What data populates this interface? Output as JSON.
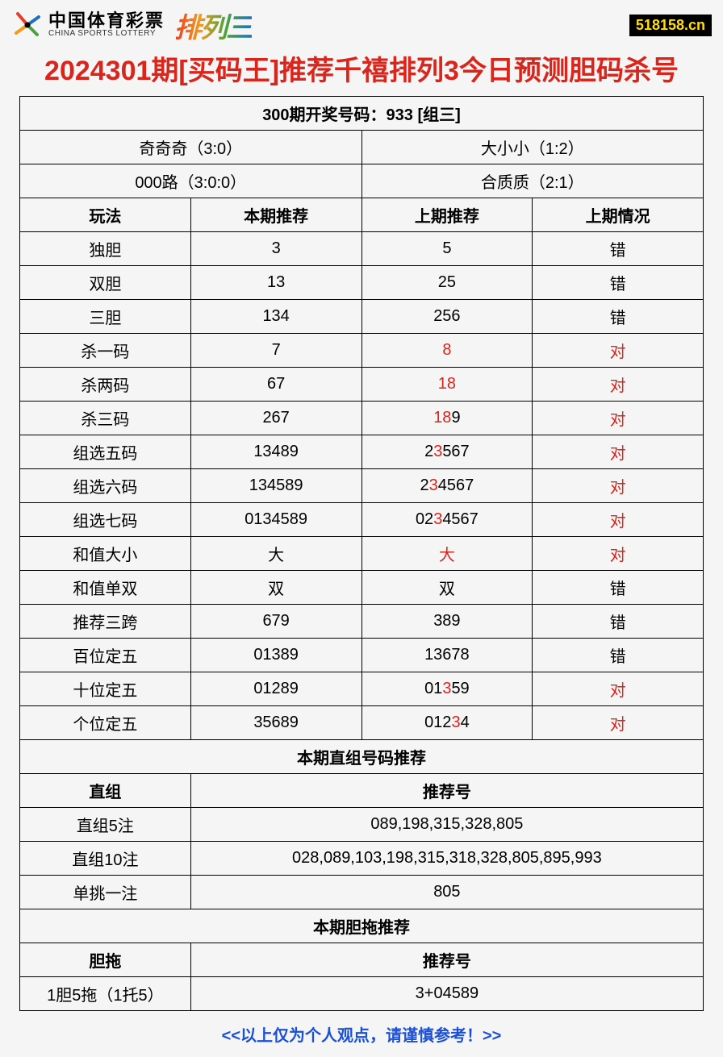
{
  "header": {
    "lottery_cn": "中国体育彩票",
    "lottery_en": "CHINA SPORTS LOTTERY",
    "pailie": "排列三",
    "site_badge": "518158.cn"
  },
  "title": "2024301期[买码王]推荐千禧排列3今日预测胆码杀号",
  "colors": {
    "title": "#d9251c",
    "highlight": "#d9251c",
    "footer": "#1b4fd6",
    "border": "#000000",
    "badge_bg": "#000000",
    "badge_fg": "#ffde00"
  },
  "fonts": {
    "title_size": 34,
    "cell_size": 20
  },
  "result_header": "300期开奖号码：933 [组三]",
  "info_pairs": [
    {
      "left": "奇奇奇（3:0）",
      "right": "大小小（1:2）"
    },
    {
      "left": "000路（3:0:0）",
      "right": "合质质（2:1）"
    }
  ],
  "column_headers": [
    "玩法",
    "本期推荐",
    "上期推荐",
    "上期情况"
  ],
  "rows": [
    {
      "name": "独胆",
      "current": [
        {
          "t": "3"
        }
      ],
      "prev": [
        {
          "t": "5"
        }
      ],
      "status": [
        {
          "t": "错"
        }
      ]
    },
    {
      "name": "双胆",
      "current": [
        {
          "t": "13"
        }
      ],
      "prev": [
        {
          "t": "25"
        }
      ],
      "status": [
        {
          "t": "错"
        }
      ]
    },
    {
      "name": "三胆",
      "current": [
        {
          "t": "134"
        }
      ],
      "prev": [
        {
          "t": "256"
        }
      ],
      "status": [
        {
          "t": "错"
        }
      ]
    },
    {
      "name": "杀一码",
      "current": [
        {
          "t": "7"
        }
      ],
      "prev": [
        {
          "t": "8",
          "c": "red"
        }
      ],
      "status": [
        {
          "t": "对",
          "c": "red"
        }
      ]
    },
    {
      "name": "杀两码",
      "current": [
        {
          "t": "67"
        }
      ],
      "prev": [
        {
          "t": "18",
          "c": "red"
        }
      ],
      "status": [
        {
          "t": "对",
          "c": "red"
        }
      ]
    },
    {
      "name": "杀三码",
      "current": [
        {
          "t": "267"
        }
      ],
      "prev": [
        {
          "t": "18",
          "c": "red"
        },
        {
          "t": "9"
        }
      ],
      "status": [
        {
          "t": "对",
          "c": "red"
        }
      ]
    },
    {
      "name": "组选五码",
      "current": [
        {
          "t": "13489"
        }
      ],
      "prev": [
        {
          "t": "2"
        },
        {
          "t": "3",
          "c": "red"
        },
        {
          "t": "567"
        }
      ],
      "status": [
        {
          "t": "对",
          "c": "red"
        }
      ]
    },
    {
      "name": "组选六码",
      "current": [
        {
          "t": "134589"
        }
      ],
      "prev": [
        {
          "t": "2"
        },
        {
          "t": "3",
          "c": "red"
        },
        {
          "t": "4567"
        }
      ],
      "status": [
        {
          "t": "对",
          "c": "red"
        }
      ]
    },
    {
      "name": "组选七码",
      "current": [
        {
          "t": "0134589"
        }
      ],
      "prev": [
        {
          "t": "02"
        },
        {
          "t": "3",
          "c": "red"
        },
        {
          "t": "4567"
        }
      ],
      "status": [
        {
          "t": "对",
          "c": "red"
        }
      ]
    },
    {
      "name": "和值大小",
      "current": [
        {
          "t": "大"
        }
      ],
      "prev": [
        {
          "t": "大",
          "c": "red"
        }
      ],
      "status": [
        {
          "t": "对",
          "c": "red"
        }
      ]
    },
    {
      "name": "和值单双",
      "current": [
        {
          "t": "双"
        }
      ],
      "prev": [
        {
          "t": "双"
        }
      ],
      "status": [
        {
          "t": "错"
        }
      ]
    },
    {
      "name": "推荐三跨",
      "current": [
        {
          "t": "679"
        }
      ],
      "prev": [
        {
          "t": "389"
        }
      ],
      "status": [
        {
          "t": "错"
        }
      ]
    },
    {
      "name": "百位定五",
      "current": [
        {
          "t": "01389"
        }
      ],
      "prev": [
        {
          "t": "13678"
        }
      ],
      "status": [
        {
          "t": "错"
        }
      ]
    },
    {
      "name": "十位定五",
      "current": [
        {
          "t": "01289"
        }
      ],
      "prev": [
        {
          "t": "01"
        },
        {
          "t": "3",
          "c": "red"
        },
        {
          "t": "59"
        }
      ],
      "status": [
        {
          "t": "对",
          "c": "red"
        }
      ]
    },
    {
      "name": "个位定五",
      "current": [
        {
          "t": "35689"
        }
      ],
      "prev": [
        {
          "t": "012"
        },
        {
          "t": "3",
          "c": "red"
        },
        {
          "t": "4"
        }
      ],
      "status": [
        {
          "t": "对",
          "c": "red"
        }
      ]
    }
  ],
  "zhizu": {
    "header": "本期直组号码推荐",
    "col_left": "直组",
    "col_right": "推荐号",
    "rows": [
      {
        "label": "直组5注",
        "value": "089,198,315,328,805"
      },
      {
        "label": "直组10注",
        "value": "028,089,103,198,315,318,328,805,895,993"
      },
      {
        "label": "单挑一注",
        "value": "805"
      }
    ]
  },
  "dantuo": {
    "header": "本期胆拖推荐",
    "col_left": "胆拖",
    "col_right": "推荐号",
    "rows": [
      {
        "label": "1胆5拖（1托5）",
        "value": "3+04589"
      }
    ]
  },
  "footer": "<<以上仅为个人观点，请谨慎参考！>>"
}
